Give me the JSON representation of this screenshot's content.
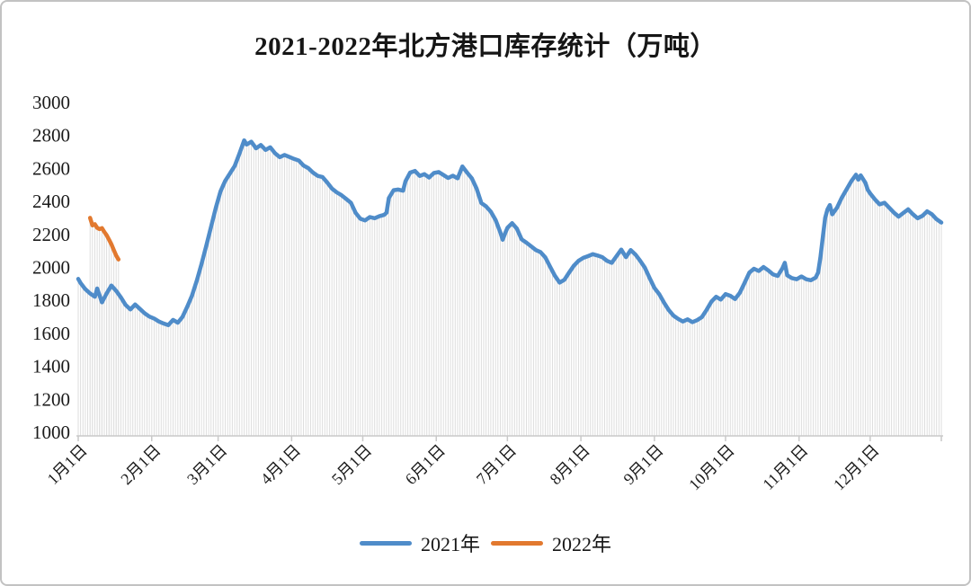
{
  "title": "2021-2022年北方港口库存统计（万吨）",
  "legend": {
    "items": [
      {
        "label": "2021年",
        "color": "#4F8CC9"
      },
      {
        "label": "2022年",
        "color": "#E2792F"
      }
    ]
  },
  "styles": {
    "dropline_color": "#dedede",
    "axis_color": "#c9c9c9",
    "text_color": "#1a1a1a",
    "background": "#ffffff",
    "frame_border": "#c2c2c2"
  },
  "chart_data": {
    "type": "line",
    "title": "2021-2022年北方港口库存统计（万吨）",
    "unit": "万吨",
    "grid": "daily vertical drop lines, no horizontal gridlines",
    "legend_position": "bottom",
    "y_axis": {
      "min": 1000,
      "max": 3000,
      "step": 200,
      "ticks": [
        3000,
        2800,
        2600,
        2400,
        2200,
        2000,
        1800,
        1600,
        1400,
        1200,
        1000
      ]
    },
    "x_axis": {
      "tick_labels": [
        "1月1日",
        "2月1日",
        "3月1日",
        "4月1日",
        "5月1日",
        "6月1日",
        "7月1日",
        "8月1日",
        "9月1日",
        "10月1日",
        "11月1日",
        "12月1日"
      ],
      "rotation": -45,
      "span_days": 365
    },
    "series": [
      {
        "name": "2021年",
        "color": "#4F8CC9",
        "points": [
          [
            "1/1",
            1930
          ],
          [
            "1/2",
            1905
          ],
          [
            "1/4",
            1868
          ],
          [
            "1/6",
            1842
          ],
          [
            "1/8",
            1822
          ],
          [
            "1/9",
            1872
          ],
          [
            "1/11",
            1788
          ],
          [
            "1/13",
            1842
          ],
          [
            "1/15",
            1890
          ],
          [
            "1/17",
            1858
          ],
          [
            "1/19",
            1818
          ],
          [
            "1/21",
            1772
          ],
          [
            "1/23",
            1745
          ],
          [
            "1/25",
            1775
          ],
          [
            "1/27",
            1748
          ],
          [
            "1/29",
            1722
          ],
          [
            "1/31",
            1702
          ],
          [
            "2/2",
            1690
          ],
          [
            "2/4",
            1672
          ],
          [
            "2/6",
            1660
          ],
          [
            "2/8",
            1650
          ],
          [
            "2/10",
            1682
          ],
          [
            "2/12",
            1665
          ],
          [
            "2/14",
            1700
          ],
          [
            "2/16",
            1762
          ],
          [
            "2/18",
            1830
          ],
          [
            "2/20",
            1920
          ],
          [
            "2/22",
            2020
          ],
          [
            "2/24",
            2130
          ],
          [
            "2/26",
            2245
          ],
          [
            "2/28",
            2360
          ],
          [
            "3/2",
            2460
          ],
          [
            "3/4",
            2525
          ],
          [
            "3/6",
            2570
          ],
          [
            "3/8",
            2615
          ],
          [
            "3/10",
            2690
          ],
          [
            "3/12",
            2770
          ],
          [
            "3/13",
            2745
          ],
          [
            "3/15",
            2762
          ],
          [
            "3/17",
            2722
          ],
          [
            "3/19",
            2742
          ],
          [
            "3/21",
            2712
          ],
          [
            "3/23",
            2728
          ],
          [
            "3/25",
            2692
          ],
          [
            "3/27",
            2668
          ],
          [
            "3/29",
            2682
          ],
          [
            "3/31",
            2670
          ],
          [
            "4/2",
            2658
          ],
          [
            "4/4",
            2648
          ],
          [
            "4/6",
            2618
          ],
          [
            "4/8",
            2602
          ],
          [
            "4/10",
            2575
          ],
          [
            "4/12",
            2555
          ],
          [
            "4/14",
            2548
          ],
          [
            "4/16",
            2515
          ],
          [
            "4/18",
            2478
          ],
          [
            "4/20",
            2455
          ],
          [
            "4/22",
            2438
          ],
          [
            "4/24",
            2415
          ],
          [
            "4/26",
            2392
          ],
          [
            "4/28",
            2330
          ],
          [
            "4/30",
            2295
          ],
          [
            "5/2",
            2285
          ],
          [
            "5/4",
            2305
          ],
          [
            "5/6",
            2298
          ],
          [
            "5/8",
            2310
          ],
          [
            "5/10",
            2318
          ],
          [
            "5/11",
            2332
          ],
          [
            "5/12",
            2420
          ],
          [
            "5/14",
            2468
          ],
          [
            "5/16",
            2472
          ],
          [
            "5/18",
            2465
          ],
          [
            "5/19",
            2522
          ],
          [
            "5/21",
            2575
          ],
          [
            "5/23",
            2585
          ],
          [
            "5/25",
            2555
          ],
          [
            "5/27",
            2565
          ],
          [
            "5/29",
            2545
          ],
          [
            "5/31",
            2572
          ],
          [
            "6/2",
            2578
          ],
          [
            "6/4",
            2560
          ],
          [
            "6/6",
            2542
          ],
          [
            "6/8",
            2556
          ],
          [
            "6/10",
            2540
          ],
          [
            "6/12",
            2612
          ],
          [
            "6/14",
            2575
          ],
          [
            "6/16",
            2540
          ],
          [
            "6/18",
            2478
          ],
          [
            "6/20",
            2390
          ],
          [
            "6/22",
            2370
          ],
          [
            "6/24",
            2338
          ],
          [
            "6/26",
            2288
          ],
          [
            "6/28",
            2212
          ],
          [
            "6/29",
            2168
          ],
          [
            "6/30",
            2205
          ],
          [
            "7/1",
            2240
          ],
          [
            "7/3",
            2268
          ],
          [
            "7/5",
            2235
          ],
          [
            "7/7",
            2170
          ],
          [
            "7/9",
            2150
          ],
          [
            "7/11",
            2128
          ],
          [
            "7/13",
            2105
          ],
          [
            "7/15",
            2092
          ],
          [
            "7/17",
            2060
          ],
          [
            "7/19",
            2005
          ],
          [
            "7/21",
            1950
          ],
          [
            "7/23",
            1908
          ],
          [
            "7/25",
            1925
          ],
          [
            "7/27",
            1968
          ],
          [
            "7/29",
            2010
          ],
          [
            "7/31",
            2040
          ],
          [
            "8/2",
            2058
          ],
          [
            "8/4",
            2068
          ],
          [
            "8/6",
            2080
          ],
          [
            "8/8",
            2072
          ],
          [
            "8/10",
            2062
          ],
          [
            "8/12",
            2040
          ],
          [
            "8/14",
            2028
          ],
          [
            "8/16",
            2068
          ],
          [
            "8/18",
            2108
          ],
          [
            "8/20",
            2062
          ],
          [
            "8/22",
            2105
          ],
          [
            "8/24",
            2078
          ],
          [
            "8/26",
            2040
          ],
          [
            "8/28",
            1998
          ],
          [
            "8/30",
            1935
          ],
          [
            "9/1",
            1875
          ],
          [
            "9/3",
            1838
          ],
          [
            "9/5",
            1788
          ],
          [
            "9/7",
            1742
          ],
          [
            "9/9",
            1708
          ],
          [
            "9/11",
            1688
          ],
          [
            "9/13",
            1672
          ],
          [
            "9/15",
            1685
          ],
          [
            "9/17",
            1668
          ],
          [
            "9/19",
            1680
          ],
          [
            "9/21",
            1698
          ],
          [
            "9/23",
            1742
          ],
          [
            "9/25",
            1792
          ],
          [
            "9/27",
            1822
          ],
          [
            "9/29",
            1805
          ],
          [
            "10/1",
            1838
          ],
          [
            "10/3",
            1828
          ],
          [
            "10/5",
            1808
          ],
          [
            "10/7",
            1845
          ],
          [
            "10/9",
            1905
          ],
          [
            "10/11",
            1968
          ],
          [
            "10/13",
            1992
          ],
          [
            "10/15",
            1978
          ],
          [
            "10/17",
            2002
          ],
          [
            "10/19",
            1982
          ],
          [
            "10/21",
            1958
          ],
          [
            "10/23",
            1948
          ],
          [
            "10/25",
            1995
          ],
          [
            "10/26",
            2028
          ],
          [
            "10/27",
            1952
          ],
          [
            "10/29",
            1935
          ],
          [
            "10/31",
            1928
          ],
          [
            "11/2",
            1945
          ],
          [
            "11/4",
            1928
          ],
          [
            "11/6",
            1922
          ],
          [
            "11/8",
            1938
          ],
          [
            "11/9",
            1968
          ],
          [
            "11/10",
            2060
          ],
          [
            "11/11",
            2180
          ],
          [
            "11/12",
            2300
          ],
          [
            "11/13",
            2352
          ],
          [
            "11/14",
            2378
          ],
          [
            "11/15",
            2322
          ],
          [
            "11/17",
            2362
          ],
          [
            "11/19",
            2422
          ],
          [
            "11/21",
            2472
          ],
          [
            "11/23",
            2522
          ],
          [
            "11/25",
            2562
          ],
          [
            "11/26",
            2532
          ],
          [
            "11/27",
            2558
          ],
          [
            "11/29",
            2512
          ],
          [
            "11/30",
            2470
          ],
          [
            "12/1",
            2448
          ],
          [
            "12/3",
            2412
          ],
          [
            "12/5",
            2382
          ],
          [
            "12/7",
            2392
          ],
          [
            "12/9",
            2362
          ],
          [
            "12/11",
            2332
          ],
          [
            "12/13",
            2308
          ],
          [
            "12/15",
            2330
          ],
          [
            "12/17",
            2352
          ],
          [
            "12/19",
            2322
          ],
          [
            "12/21",
            2298
          ],
          [
            "12/23",
            2312
          ],
          [
            "12/25",
            2340
          ],
          [
            "12/27",
            2322
          ],
          [
            "12/29",
            2292
          ],
          [
            "12/31",
            2272
          ]
        ]
      },
      {
        "name": "2022年",
        "color": "#E2792F",
        "points": [
          [
            "1/6",
            2300
          ],
          [
            "1/7",
            2255
          ],
          [
            "1/8",
            2262
          ],
          [
            "1/9",
            2240
          ],
          [
            "1/10",
            2232
          ],
          [
            "1/11",
            2238
          ],
          [
            "1/12",
            2215
          ],
          [
            "1/13",
            2195
          ],
          [
            "1/14",
            2168
          ],
          [
            "1/15",
            2140
          ],
          [
            "1/16",
            2105
          ],
          [
            "1/17",
            2072
          ],
          [
            "1/18",
            2048
          ]
        ]
      }
    ]
  }
}
